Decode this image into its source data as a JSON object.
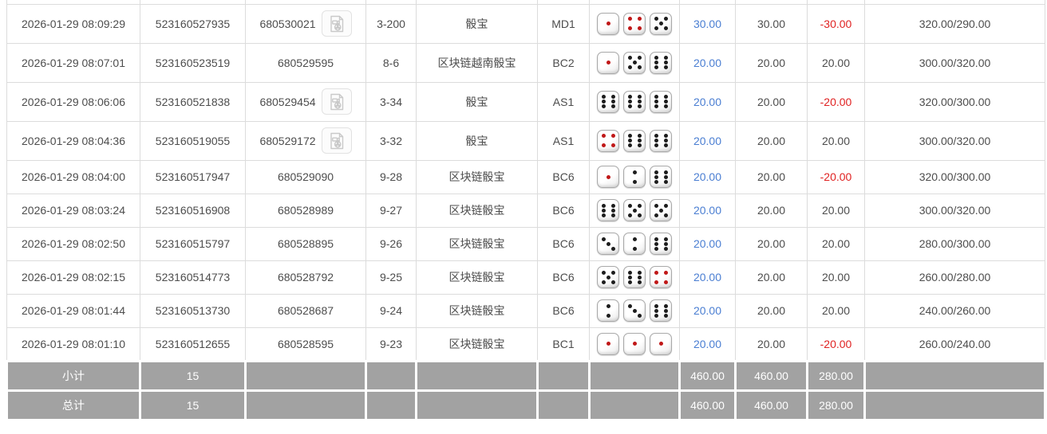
{
  "colors": {
    "bet_amount_blue": "#4a7ed2",
    "negative_red": "#e02222",
    "summary_gray": "#a2a2a2",
    "border_gray": "#dcdcdc",
    "dice_pip_red": "#c01818",
    "dice_pip_black": "#1d1d1d"
  },
  "icons": {
    "video_replay": "video-replay-icon"
  },
  "rows": [
    {
      "time": "2026-01-29 08:09:29",
      "bet_id": "523160527935",
      "round_id": "680530021",
      "has_video": true,
      "period": "3-200",
      "game": "骰宝",
      "table_code": "MD1",
      "dice": [
        {
          "value": 1,
          "color": "red"
        },
        {
          "value": 4,
          "color": "red"
        },
        {
          "value": 5,
          "color": "black"
        }
      ],
      "bet_amount": "30.00",
      "valid_amount": "30.00",
      "win_loss": "-30.00",
      "balance": "320.00/290.00"
    },
    {
      "time": "2026-01-29 08:07:01",
      "bet_id": "523160523519",
      "round_id": "680529595",
      "has_video": false,
      "period": "8-6",
      "game": "区块链越南骰宝",
      "table_code": "BC2",
      "dice": [
        {
          "value": 1,
          "color": "red"
        },
        {
          "value": 5,
          "color": "black"
        },
        {
          "value": 6,
          "color": "black"
        }
      ],
      "bet_amount": "20.00",
      "valid_amount": "20.00",
      "win_loss": "20.00",
      "balance": "300.00/320.00"
    },
    {
      "time": "2026-01-29 08:06:06",
      "bet_id": "523160521838",
      "round_id": "680529454",
      "has_video": true,
      "period": "3-34",
      "game": "骰宝",
      "table_code": "AS1",
      "dice": [
        {
          "value": 6,
          "color": "black"
        },
        {
          "value": 6,
          "color": "black"
        },
        {
          "value": 6,
          "color": "black"
        }
      ],
      "bet_amount": "20.00",
      "valid_amount": "20.00",
      "win_loss": "-20.00",
      "balance": "320.00/300.00"
    },
    {
      "time": "2026-01-29 08:04:36",
      "bet_id": "523160519055",
      "round_id": "680529172",
      "has_video": true,
      "period": "3-32",
      "game": "骰宝",
      "table_code": "AS1",
      "dice": [
        {
          "value": 4,
          "color": "red"
        },
        {
          "value": 6,
          "color": "black"
        },
        {
          "value": 6,
          "color": "black"
        }
      ],
      "bet_amount": "20.00",
      "valid_amount": "20.00",
      "win_loss": "20.00",
      "balance": "300.00/320.00"
    },
    {
      "time": "2026-01-29 08:04:00",
      "bet_id": "523160517947",
      "round_id": "680529090",
      "has_video": false,
      "period": "9-28",
      "game": "区块链骰宝",
      "table_code": "BC6",
      "dice": [
        {
          "value": 1,
          "color": "red"
        },
        {
          "value": 2,
          "color": "black"
        },
        {
          "value": 6,
          "color": "black"
        }
      ],
      "bet_amount": "20.00",
      "valid_amount": "20.00",
      "win_loss": "-20.00",
      "balance": "320.00/300.00"
    },
    {
      "time": "2026-01-29 08:03:24",
      "bet_id": "523160516908",
      "round_id": "680528989",
      "has_video": false,
      "period": "9-27",
      "game": "区块链骰宝",
      "table_code": "BC6",
      "dice": [
        {
          "value": 6,
          "color": "black"
        },
        {
          "value": 5,
          "color": "black"
        },
        {
          "value": 5,
          "color": "black"
        }
      ],
      "bet_amount": "20.00",
      "valid_amount": "20.00",
      "win_loss": "20.00",
      "balance": "300.00/320.00"
    },
    {
      "time": "2026-01-29 08:02:50",
      "bet_id": "523160515797",
      "round_id": "680528895",
      "has_video": false,
      "period": "9-26",
      "game": "区块链骰宝",
      "table_code": "BC6",
      "dice": [
        {
          "value": 3,
          "color": "black"
        },
        {
          "value": 2,
          "color": "black"
        },
        {
          "value": 6,
          "color": "black"
        }
      ],
      "bet_amount": "20.00",
      "valid_amount": "20.00",
      "win_loss": "20.00",
      "balance": "280.00/300.00"
    },
    {
      "time": "2026-01-29 08:02:15",
      "bet_id": "523160514773",
      "round_id": "680528792",
      "has_video": false,
      "period": "9-25",
      "game": "区块链骰宝",
      "table_code": "BC6",
      "dice": [
        {
          "value": 5,
          "color": "black"
        },
        {
          "value": 6,
          "color": "black"
        },
        {
          "value": 4,
          "color": "red"
        }
      ],
      "bet_amount": "20.00",
      "valid_amount": "20.00",
      "win_loss": "20.00",
      "balance": "260.00/280.00"
    },
    {
      "time": "2026-01-29 08:01:44",
      "bet_id": "523160513730",
      "round_id": "680528687",
      "has_video": false,
      "period": "9-24",
      "game": "区块链骰宝",
      "table_code": "BC6",
      "dice": [
        {
          "value": 2,
          "color": "black"
        },
        {
          "value": 3,
          "color": "black"
        },
        {
          "value": 6,
          "color": "black"
        }
      ],
      "bet_amount": "20.00",
      "valid_amount": "20.00",
      "win_loss": "20.00",
      "balance": "240.00/260.00"
    },
    {
      "time": "2026-01-29 08:01:10",
      "bet_id": "523160512655",
      "round_id": "680528595",
      "has_video": false,
      "period": "9-23",
      "game": "区块链骰宝",
      "table_code": "BC1",
      "dice": [
        {
          "value": 1,
          "color": "red"
        },
        {
          "value": 1,
          "color": "red"
        },
        {
          "value": 1,
          "color": "red"
        }
      ],
      "bet_amount": "20.00",
      "valid_amount": "20.00",
      "win_loss": "-20.00",
      "balance": "260.00/240.00"
    }
  ],
  "footer": {
    "subtotal": {
      "label": "小计",
      "count": "15",
      "bet_total": "460.00",
      "valid_total": "460.00",
      "win_loss_total": "280.00"
    },
    "total": {
      "label": "总计",
      "count": "15",
      "bet_total": "460.00",
      "valid_total": "460.00",
      "win_loss_total": "280.00"
    }
  }
}
